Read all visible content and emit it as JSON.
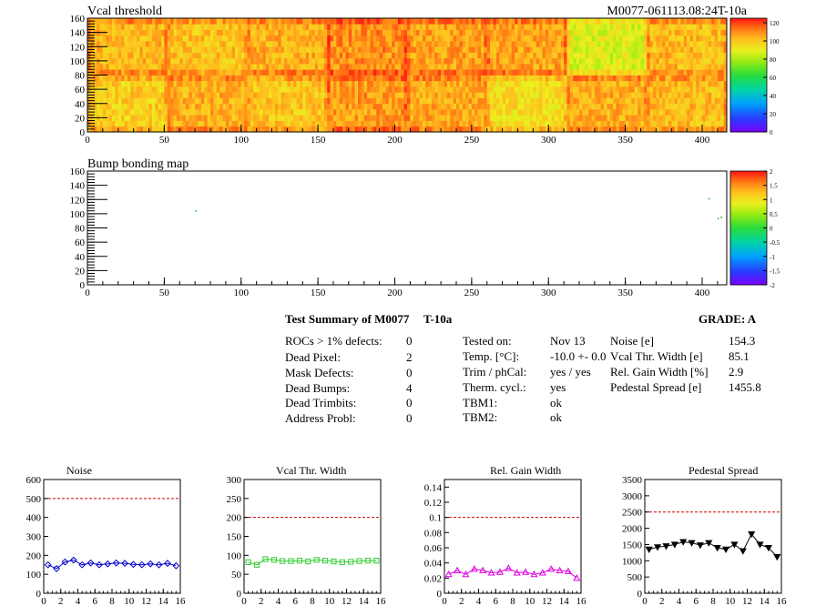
{
  "header": {
    "vcal_title": "Vcal threshold",
    "module_id": "M0077-061113.08:24T-10a",
    "bump_title": "Bump bonding map"
  },
  "summary": {
    "title": "Test Summary of M0077",
    "test": "T-10a",
    "grade": "GRADE:  A",
    "col1": [
      {
        "label": "ROCs > 1% defects:",
        "value": "0"
      },
      {
        "label": "Dead Pixel:",
        "value": "2"
      },
      {
        "label": "Mask Defects:",
        "value": "0"
      },
      {
        "label": "Dead Bumps:",
        "value": "4"
      },
      {
        "label": "Dead Trimbits:",
        "value": "0"
      },
      {
        "label": "Address Probl:",
        "value": "0"
      }
    ],
    "col2": [
      {
        "label": "Tested on:",
        "value": "Nov 13"
      },
      {
        "label": "Temp. [°C]:",
        "value": "-10.0 +- 0.0"
      },
      {
        "label": "Trim / phCal:",
        "value": "yes / yes"
      },
      {
        "label": "Therm. cycl.:",
        "value": "yes"
      },
      {
        "label": "TBM1:",
        "value": "ok"
      },
      {
        "label": "TBM2:",
        "value": "ok"
      }
    ],
    "col3": [
      {
        "label": "Noise [e]",
        "value": "154.3"
      },
      {
        "label": "Vcal Thr. Width [e]",
        "value": "85.1"
      },
      {
        "label": "Rel. Gain Width [%]",
        "value": "2.9"
      },
      {
        "label": "Pedestal Spread [e]",
        "value": "1455.8"
      }
    ]
  },
  "colors": {
    "noise": "#0000cc",
    "vcal": "#33cc33",
    "gain": "#dd00dd",
    "pedestal": "#000000",
    "limit_line": "#cc0000"
  },
  "chart_data": [
    {
      "type": "heatmap",
      "title": "Vcal threshold",
      "x_ticks": [
        "0",
        "50",
        "100",
        "150",
        "200",
        "250",
        "300",
        "350",
        "400"
      ],
      "y_ticks": [
        "0",
        "20",
        "40",
        "60",
        "80",
        "100",
        "120",
        "140",
        "160"
      ],
      "xlim": [
        0,
        416
      ],
      "ylim": [
        0,
        160
      ],
      "colorbar_ticks": [
        "0",
        "20",
        "40",
        "60",
        "80",
        "100",
        "120"
      ],
      "colorbar_range": [
        0,
        125
      ],
      "roc_grid": {
        "cols": 8,
        "rows": 2
      },
      "roc_mean_values": [
        [
          98,
          104,
          100,
          108,
          105,
          95,
          104,
          102
        ],
        [
          103,
          101,
          104,
          110,
          107,
          106,
          88,
          102
        ]
      ]
    },
    {
      "type": "heatmap",
      "title": "Bump bonding map",
      "x_ticks": [
        "0",
        "50",
        "100",
        "150",
        "200",
        "250",
        "300",
        "350",
        "400"
      ],
      "y_ticks": [
        "0",
        "20",
        "40",
        "60",
        "80",
        "100",
        "120",
        "140",
        "160"
      ],
      "xlim": [
        0,
        416
      ],
      "ylim": [
        0,
        160
      ],
      "colorbar_ticks": [
        "-2",
        "-1.5",
        "-1",
        "-0.5",
        "0",
        "0.5",
        "1",
        "1.5",
        "2"
      ],
      "colorbar_range": [
        -2,
        2
      ],
      "points": [
        {
          "x": 70,
          "y": 105
        },
        {
          "x": 404,
          "y": 122
        },
        {
          "x": 410,
          "y": 94
        },
        {
          "x": 412,
          "y": 96
        }
      ]
    },
    {
      "type": "line",
      "title": "Noise",
      "x_ticks": [
        "0",
        "2",
        "4",
        "6",
        "8",
        "10",
        "12",
        "14",
        "16"
      ],
      "y_ticks": [
        "0",
        "100",
        "200",
        "300",
        "400",
        "500",
        "600"
      ],
      "xlim": [
        0,
        16
      ],
      "ylim": [
        0,
        600
      ],
      "limit": 500,
      "marker": "diamond-open",
      "x": [
        0,
        1,
        2,
        3,
        4,
        5,
        6,
        7,
        8,
        9,
        10,
        11,
        12,
        13,
        14,
        15
      ],
      "values": [
        150,
        130,
        165,
        175,
        150,
        160,
        150,
        155,
        160,
        158,
        152,
        150,
        155,
        150,
        158,
        145
      ]
    },
    {
      "type": "line",
      "title": "Vcal Thr. Width",
      "x_ticks": [
        "0",
        "2",
        "4",
        "6",
        "8",
        "10",
        "12",
        "14",
        "16"
      ],
      "y_ticks": [
        "0",
        "50",
        "100",
        "150",
        "200",
        "250",
        "300"
      ],
      "xlim": [
        0,
        16
      ],
      "ylim": [
        0,
        300
      ],
      "limit": 200,
      "marker": "square-open",
      "x": [
        0,
        1,
        2,
        3,
        4,
        5,
        6,
        7,
        8,
        9,
        10,
        11,
        12,
        13,
        14,
        15
      ],
      "values": [
        82,
        75,
        90,
        88,
        85,
        85,
        86,
        84,
        88,
        86,
        84,
        82,
        83,
        85,
        86,
        86
      ]
    },
    {
      "type": "line",
      "title": "Rel. Gain Width",
      "x_ticks": [
        "0",
        "2",
        "4",
        "6",
        "8",
        "10",
        "12",
        "14",
        "16"
      ],
      "y_ticks": [
        "0",
        "0.02",
        "0.04",
        "0.06",
        "0.08",
        "0.1",
        "0.12",
        "0.14"
      ],
      "xlim": [
        0,
        16
      ],
      "ylim": [
        0,
        0.15
      ],
      "limit": 0.1,
      "marker": "triangle-up-open",
      "x": [
        0,
        1,
        2,
        3,
        4,
        5,
        6,
        7,
        8,
        9,
        10,
        11,
        12,
        13,
        14,
        15
      ],
      "values": [
        0.025,
        0.03,
        0.025,
        0.032,
        0.03,
        0.027,
        0.028,
        0.033,
        0.027,
        0.028,
        0.025,
        0.027,
        0.032,
        0.03,
        0.029,
        0.02
      ]
    },
    {
      "type": "line",
      "title": "Pedestal Spread",
      "x_ticks": [
        "0",
        "2",
        "4",
        "6",
        "8",
        "10",
        "12",
        "14",
        "16"
      ],
      "y_ticks": [
        "0",
        "500",
        "1000",
        "1500",
        "2000",
        "2500",
        "3000",
        "3500"
      ],
      "xlim": [
        0,
        16
      ],
      "ylim": [
        0,
        3500
      ],
      "limit": 2500,
      "marker": "triangle-down-filled",
      "x": [
        0,
        1,
        2,
        3,
        4,
        5,
        6,
        7,
        8,
        9,
        10,
        11,
        12,
        13,
        14,
        15
      ],
      "values": [
        1350,
        1420,
        1450,
        1500,
        1580,
        1550,
        1480,
        1550,
        1400,
        1350,
        1500,
        1300,
        1820,
        1500,
        1400,
        1120
      ]
    }
  ]
}
